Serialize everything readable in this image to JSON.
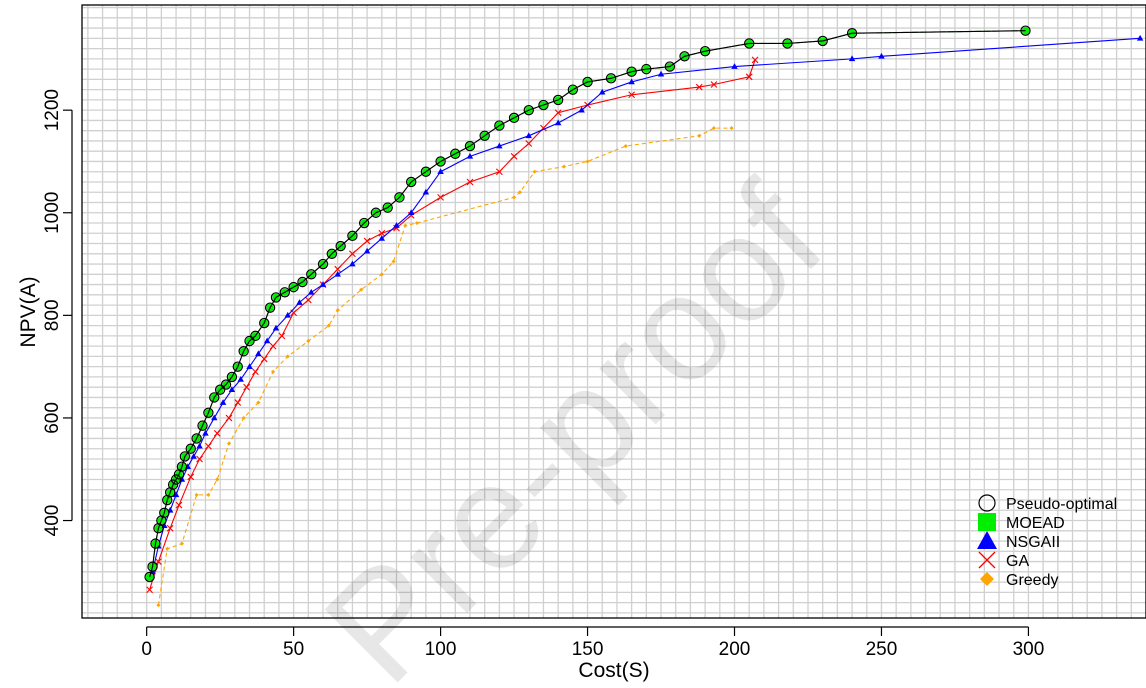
{
  "chart_data": {
    "type": "line",
    "xlabel": "Cost(S)",
    "ylabel": "NPV(A)",
    "xlim": [
      -22,
      340
    ],
    "ylim": [
      210,
      1405
    ],
    "x_ticks": [
      "0",
      "50",
      "100",
      "150",
      "200",
      "250",
      "300"
    ],
    "y_ticks": [
      "400",
      "600",
      "800",
      "1000",
      "1200"
    ],
    "grid": true,
    "legend_position": "bottom-right",
    "watermark": "Pre-proof",
    "series": [
      {
        "name": "Pseudo-optimal",
        "marker": "circle",
        "color": "#000000",
        "line_color": "#000000",
        "x": [
          1,
          2,
          3,
          4,
          5,
          6,
          7,
          8,
          9,
          10,
          11,
          12,
          13,
          15,
          17,
          19,
          21,
          23,
          25,
          27,
          29,
          31,
          33,
          35,
          37,
          40,
          42,
          44,
          47,
          50,
          53,
          56,
          60,
          63,
          66,
          70,
          74,
          78,
          82,
          86,
          90,
          95,
          100,
          105,
          110,
          115,
          120,
          125,
          130,
          135,
          140,
          145,
          150,
          158,
          165,
          170,
          178,
          183,
          190,
          205,
          218,
          230,
          240,
          299
        ],
        "y": [
          290,
          310,
          355,
          385,
          400,
          415,
          440,
          455,
          470,
          480,
          490,
          505,
          525,
          540,
          560,
          585,
          610,
          640,
          655,
          665,
          680,
          700,
          730,
          750,
          760,
          785,
          815,
          835,
          845,
          855,
          865,
          880,
          900,
          920,
          935,
          955,
          980,
          1000,
          1010,
          1030,
          1060,
          1080,
          1100,
          1115,
          1130,
          1150,
          1170,
          1185,
          1200,
          1210,
          1220,
          1240,
          1255,
          1262,
          1275,
          1280,
          1285,
          1305,
          1315,
          1330,
          1330,
          1335,
          1350,
          1355
        ]
      },
      {
        "name": "MOEAD",
        "marker": "square",
        "color": "#00ee00",
        "line_color": "#228b22",
        "x": [
          1,
          2,
          3,
          4,
          5,
          6,
          7,
          8,
          9,
          10,
          11,
          12,
          13,
          15,
          17,
          19,
          21,
          23,
          25,
          27,
          29,
          31,
          33,
          35,
          37,
          40,
          42,
          44,
          47,
          50,
          53,
          56,
          60,
          63,
          66,
          70,
          74,
          78,
          82,
          86,
          90,
          95,
          100,
          105,
          110,
          115,
          120,
          125,
          130,
          135,
          140,
          145,
          150,
          158,
          165,
          170,
          178,
          183,
          190,
          205,
          218,
          230,
          240,
          299
        ],
        "y": [
          290,
          310,
          355,
          385,
          400,
          415,
          440,
          455,
          470,
          480,
          490,
          505,
          525,
          540,
          560,
          585,
          610,
          640,
          655,
          665,
          680,
          700,
          730,
          750,
          760,
          785,
          815,
          835,
          845,
          855,
          865,
          880,
          900,
          920,
          935,
          955,
          980,
          1000,
          1010,
          1030,
          1060,
          1080,
          1100,
          1115,
          1130,
          1150,
          1170,
          1185,
          1200,
          1210,
          1220,
          1240,
          1255,
          1262,
          1275,
          1280,
          1285,
          1305,
          1315,
          1330,
          1330,
          1335,
          1350,
          1355
        ]
      },
      {
        "name": "NSGAII",
        "marker": "triangle",
        "color": "#0000ff",
        "line_color": "#0000ff",
        "x": [
          2,
          4,
          6,
          8,
          10,
          12,
          14,
          16,
          18,
          20,
          23,
          26,
          29,
          32,
          35,
          38,
          41,
          44,
          48,
          52,
          56,
          60,
          65,
          70,
          75,
          80,
          85,
          90,
          95,
          100,
          110,
          120,
          130,
          140,
          148,
          155,
          165,
          175,
          200,
          240,
          250,
          338
        ],
        "y": [
          300,
          350,
          390,
          420,
          450,
          480,
          505,
          525,
          545,
          570,
          600,
          630,
          655,
          675,
          700,
          725,
          750,
          775,
          800,
          825,
          845,
          860,
          880,
          900,
          925,
          950,
          975,
          1000,
          1040,
          1080,
          1110,
          1130,
          1150,
          1175,
          1200,
          1235,
          1255,
          1270,
          1285,
          1300,
          1305,
          1340
        ]
      },
      {
        "name": "GA",
        "marker": "x",
        "color": "#ff0000",
        "line_color": "#ff0000",
        "x": [
          1,
          4,
          8,
          11,
          15,
          18,
          21,
          24,
          28,
          31,
          34,
          37,
          40,
          43,
          46,
          50,
          55,
          60,
          65,
          70,
          75,
          80,
          85,
          90,
          100,
          110,
          120,
          125,
          130,
          135,
          140,
          150,
          165,
          188,
          193,
          205,
          207
        ],
        "y": [
          265,
          320,
          385,
          430,
          485,
          520,
          545,
          570,
          600,
          630,
          660,
          690,
          715,
          740,
          760,
          805,
          830,
          860,
          890,
          920,
          945,
          960,
          970,
          995,
          1030,
          1060,
          1080,
          1110,
          1135,
          1165,
          1195,
          1210,
          1230,
          1245,
          1250,
          1265,
          1298
        ]
      },
      {
        "name": "Greedy",
        "marker": "diamond",
        "color": "#ffa500",
        "line_color": "#ffa500",
        "x": [
          4,
          7,
          12,
          17,
          21,
          24,
          28,
          33,
          38,
          43,
          48,
          55,
          62,
          65,
          73,
          80,
          84,
          88,
          92,
          125,
          127,
          132,
          142,
          150,
          163,
          188,
          193,
          199
        ],
        "y": [
          235,
          345,
          355,
          450,
          450,
          480,
          550,
          600,
          630,
          690,
          720,
          750,
          780,
          810,
          850,
          880,
          905,
          975,
          980,
          1030,
          1040,
          1080,
          1090,
          1100,
          1130,
          1150,
          1165,
          1165
        ]
      }
    ]
  }
}
